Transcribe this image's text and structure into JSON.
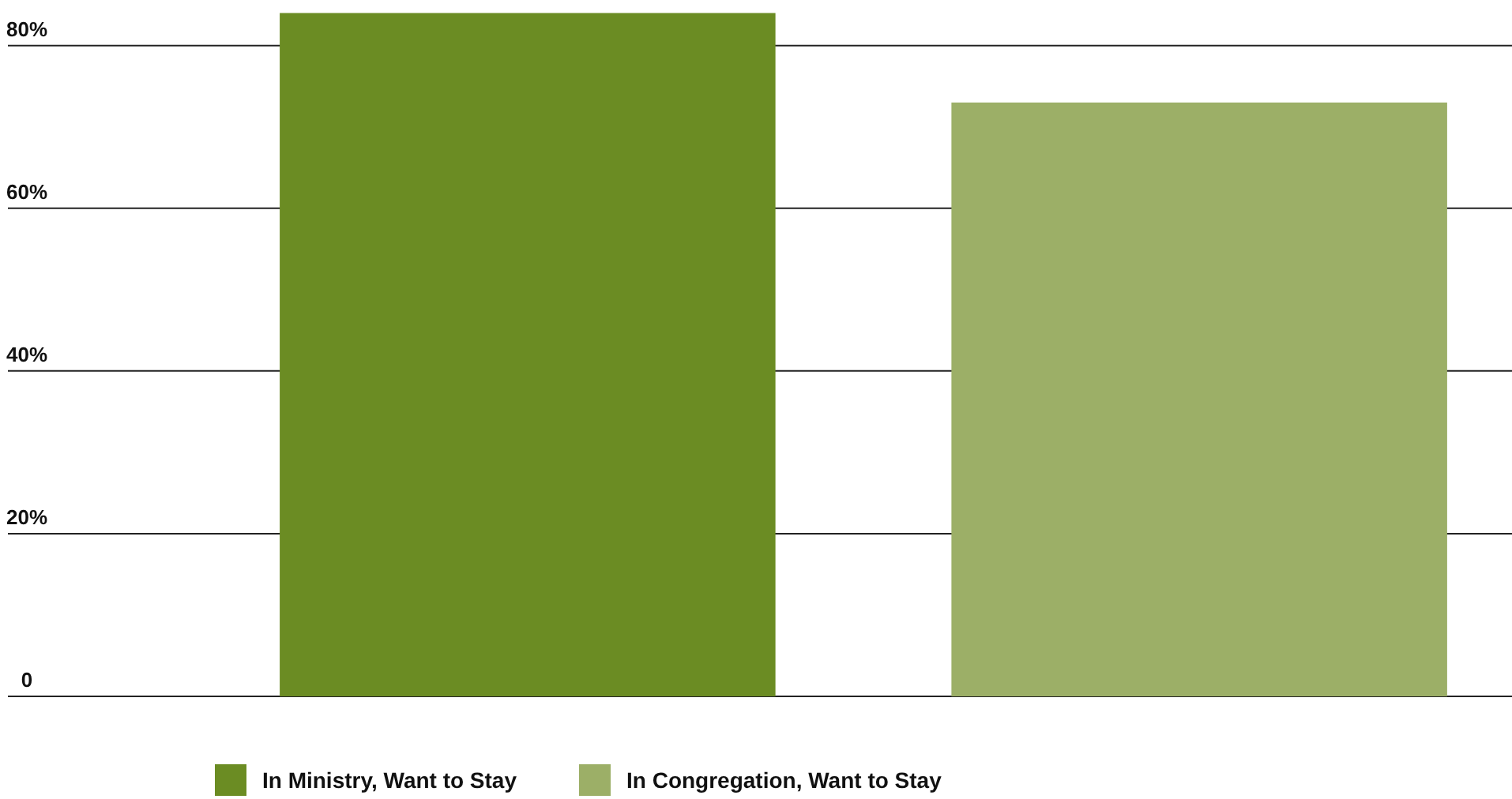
{
  "chart_data": {
    "type": "bar",
    "categories": [
      null
    ],
    "series": [
      {
        "name": "In Ministry, Want to Stay",
        "color": "#6b8c23",
        "values": [
          84
        ]
      },
      {
        "name": "In Congregation, Want to Stay",
        "color": "#9caf67",
        "values": [
          73
        ]
      }
    ],
    "ylim": [
      0,
      85.6
    ],
    "yticks": [
      0,
      {
        "value": 20,
        "label": "20%"
      },
      {
        "value": 40,
        "label": "40%"
      },
      {
        "value": 60,
        "label": "60%"
      },
      {
        "value": 80,
        "label": "80%"
      }
    ],
    "grid": "y",
    "legend": "bottom"
  }
}
